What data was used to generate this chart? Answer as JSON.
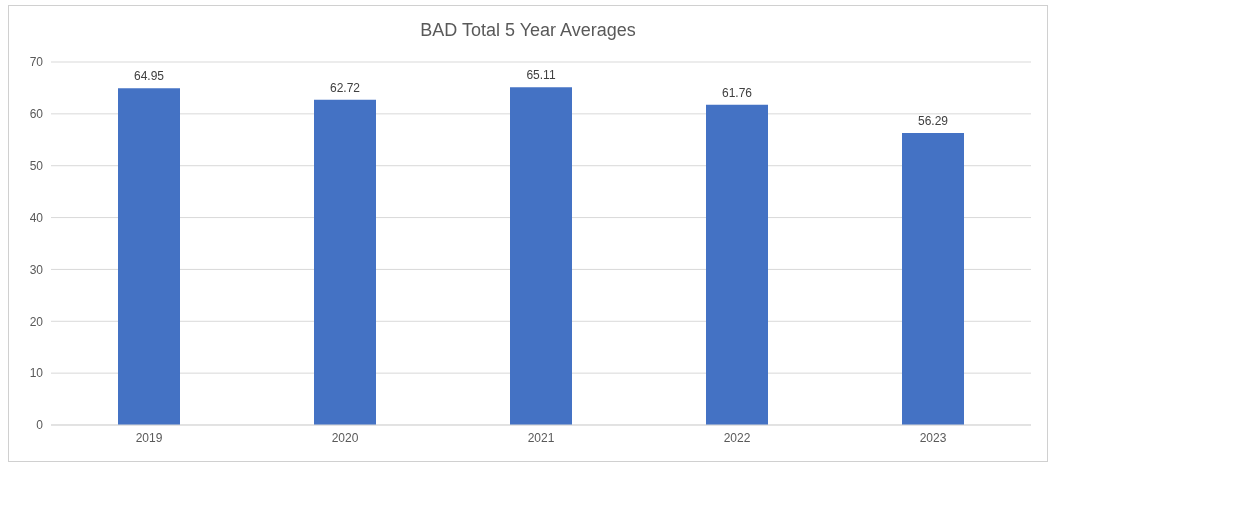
{
  "chart_data": {
    "type": "bar",
    "title": "BAD Total 5 Year Averages",
    "categories": [
      "2019",
      "2020",
      "2021",
      "2022",
      "2023"
    ],
    "values": [
      64.95,
      62.72,
      65.11,
      61.76,
      56.29
    ],
    "color": "#4472c4",
    "ylim": [
      0,
      70
    ],
    "yticks": [
      0,
      10,
      20,
      30,
      40,
      50,
      60,
      70
    ],
    "grid": "y",
    "data_labels": true
  }
}
